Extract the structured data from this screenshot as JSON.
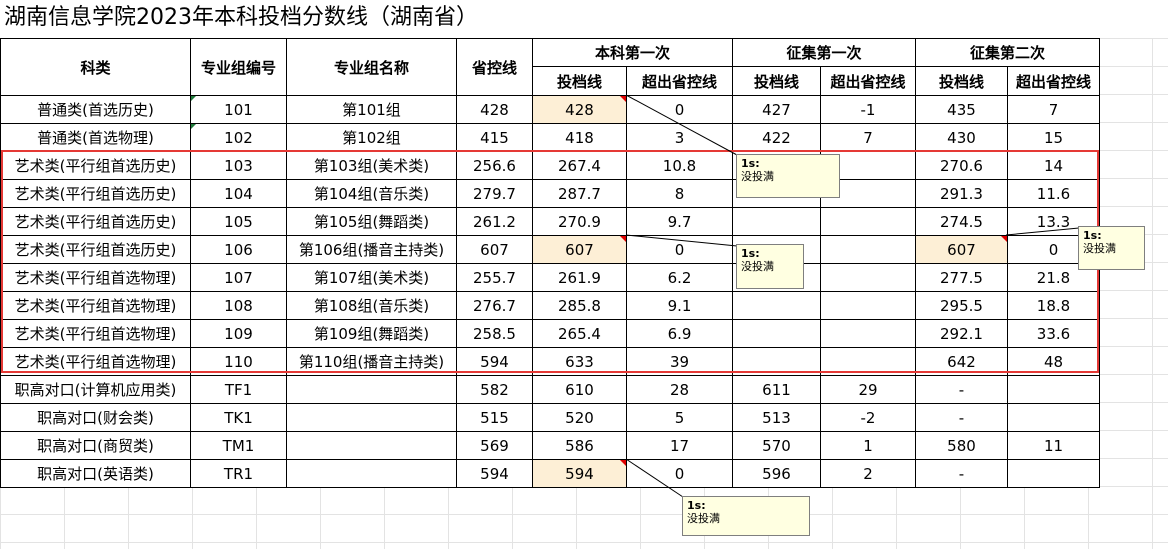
{
  "title": "湖南信息学院2023年本科投档分数线（湖南省）",
  "headers": {
    "category": "科类",
    "group_code": "专业组编号",
    "group_name": "专业组名称",
    "provincial_line": "省控线",
    "round1": "本科第一次",
    "supp1": "征集第一次",
    "supp2": "征集第二次",
    "cutoff": "投档线",
    "over": "超出省控线"
  },
  "rows": [
    {
      "category": "普通类(首选历史)",
      "code": "101",
      "name": "第101组",
      "ctrl": "428",
      "r1": "428",
      "r1o": "0",
      "s1": "427",
      "s1o": "-1",
      "s2": "435",
      "s2o": "7"
    },
    {
      "category": "普通类(首选物理)",
      "code": "102",
      "name": "第102组",
      "ctrl": "415",
      "r1": "418",
      "r1o": "3",
      "s1": "422",
      "s1o": "7",
      "s2": "430",
      "s2o": "15"
    },
    {
      "category": "艺术类(平行组首选历史)",
      "code": "103",
      "name": "第103组(美术类)",
      "ctrl": "256.6",
      "r1": "267.4",
      "r1o": "10.8",
      "s1": "",
      "s1o": "",
      "s2": "270.6",
      "s2o": "14"
    },
    {
      "category": "艺术类(平行组首选历史)",
      "code": "104",
      "name": "第104组(音乐类)",
      "ctrl": "279.7",
      "r1": "287.7",
      "r1o": "8",
      "s1": "",
      "s1o": "",
      "s2": "291.3",
      "s2o": "11.6"
    },
    {
      "category": "艺术类(平行组首选历史)",
      "code": "105",
      "name": "第105组(舞蹈类)",
      "ctrl": "261.2",
      "r1": "270.9",
      "r1o": "9.7",
      "s1": "",
      "s1o": "",
      "s2": "274.5",
      "s2o": "13.3"
    },
    {
      "category": "艺术类(平行组首选历史)",
      "code": "106",
      "name": "第106组(播音主持类)",
      "ctrl": "607",
      "r1": "607",
      "r1o": "0",
      "s1": "",
      "s1o": "",
      "s2": "607",
      "s2o": "0"
    },
    {
      "category": "艺术类(平行组首选物理)",
      "code": "107",
      "name": "第107组(美术类)",
      "ctrl": "255.7",
      "r1": "261.9",
      "r1o": "6.2",
      "s1": "",
      "s1o": "",
      "s2": "277.5",
      "s2o": "21.8"
    },
    {
      "category": "艺术类(平行组首选物理)",
      "code": "108",
      "name": "第108组(音乐类)",
      "ctrl": "276.7",
      "r1": "285.8",
      "r1o": "9.1",
      "s1": "",
      "s1o": "",
      "s2": "295.5",
      "s2o": "18.8"
    },
    {
      "category": "艺术类(平行组首选物理)",
      "code": "109",
      "name": "第109组(舞蹈类)",
      "ctrl": "258.5",
      "r1": "265.4",
      "r1o": "6.9",
      "s1": "",
      "s1o": "",
      "s2": "292.1",
      "s2o": "33.6"
    },
    {
      "category": "艺术类(平行组首选物理)",
      "code": "110",
      "name": "第110组(播音主持类)",
      "ctrl": "594",
      "r1": "633",
      "r1o": "39",
      "s1": "",
      "s1o": "",
      "s2": "642",
      "s2o": "48"
    },
    {
      "category": "职高对口(计算机应用类)",
      "code": "TF1",
      "name": "",
      "ctrl": "582",
      "r1": "610",
      "r1o": "28",
      "s1": "611",
      "s1o": "29",
      "s2": "-",
      "s2o": ""
    },
    {
      "category": "职高对口(财会类)",
      "code": "TK1",
      "name": "",
      "ctrl": "515",
      "r1": "520",
      "r1o": "5",
      "s1": "513",
      "s1o": "-2",
      "s2": "-",
      "s2o": ""
    },
    {
      "category": "职高对口(商贸类)",
      "code": "TM1",
      "name": "",
      "ctrl": "569",
      "r1": "586",
      "r1o": "17",
      "s1": "570",
      "s1o": "1",
      "s2": "580",
      "s2o": "11"
    },
    {
      "category": "职高对口(英语类)",
      "code": "TR1",
      "name": "",
      "ctrl": "594",
      "r1": "594",
      "r1o": "0",
      "s1": "596",
      "s1o": "2",
      "s2": "-",
      "s2o": ""
    }
  ],
  "comments": [
    {
      "author": "1s:",
      "text": "没投满"
    },
    {
      "author": "1s:",
      "text": "没投满"
    },
    {
      "author": "1s:",
      "text": "没投满"
    },
    {
      "author": "1s:",
      "text": "没投满"
    }
  ],
  "colors": {
    "selection": "#e53935",
    "highlight": "#fdefd6",
    "comment_bg": "#ffffe1",
    "comment_marker": "#e00000"
  }
}
